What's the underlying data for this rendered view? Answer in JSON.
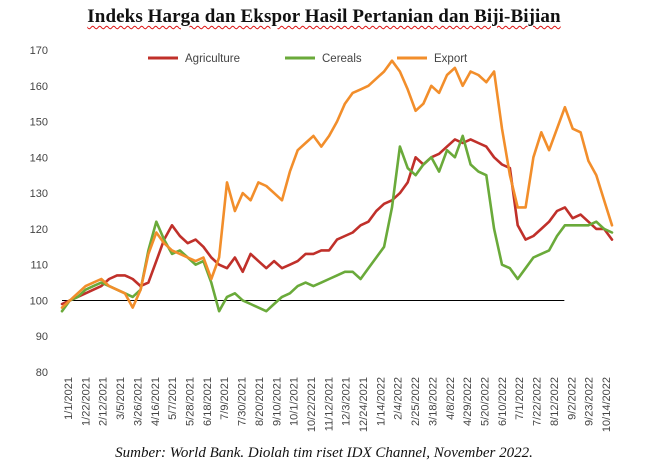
{
  "page": {
    "title": "Indeks Harga dan Ekspor Hasil Pertanian dan Biji-Bijian",
    "source": "Sumber: World Bank. Diolah tim riset IDX Channel, November 2022."
  },
  "chart_data": {
    "type": "line",
    "ylim": [
      80,
      170
    ],
    "yticks": [
      80,
      90,
      100,
      110,
      120,
      130,
      140,
      150,
      160,
      170
    ],
    "x_tick_labels": [
      "1/1/2021",
      "1/22/2021",
      "2/12/2021",
      "3/5/2021",
      "3/26/2021",
      "4/16/2021",
      "5/7/2021",
      "5/28/2021",
      "6/18/2021",
      "7/9/2021",
      "7/30/2021",
      "8/20/2021",
      "9/10/2021",
      "10/1/2021",
      "10/22/2021",
      "11/12/2021",
      "12/3/2021",
      "12/24/2021",
      "1/14/2022",
      "2/4/2022",
      "2/25/2022",
      "3/18/2022",
      "4/8/2022",
      "4/29/2022",
      "5/20/2022",
      "6/10/2022",
      "7/1/2022",
      "7/22/2022",
      "8/12/2022",
      "9/2/2022",
      "9/23/2022",
      "10/14/2022"
    ],
    "grid": false,
    "legend_position": "top-center",
    "reference_line": {
      "value": 100,
      "from_index": 0,
      "to_index": 28.6,
      "color": "#000000"
    },
    "series": [
      {
        "name": "Agriculture",
        "color": "#c0302a",
        "values": [
          99,
          100,
          101,
          102,
          103,
          104,
          106,
          107,
          107,
          106,
          104,
          105,
          111,
          117,
          121,
          118,
          116,
          117,
          115,
          112,
          110,
          109,
          112,
          108,
          113,
          111,
          109,
          111,
          109,
          110,
          111,
          113,
          113,
          114,
          114,
          117,
          118,
          119,
          121,
          122,
          125,
          127,
          128,
          130,
          133,
          140,
          138,
          140,
          141,
          143,
          145,
          144,
          145,
          144,
          143,
          140,
          138,
          137,
          121,
          117,
          118,
          120,
          122,
          125,
          126,
          123,
          124,
          122,
          120,
          120,
          117
        ]
      },
      {
        "name": "Cereals",
        "color": "#6aaa3a",
        "values": [
          97,
          100,
          101,
          103,
          104,
          105,
          104,
          103,
          102,
          101,
          103,
          114,
          122,
          117,
          113,
          114,
          112,
          110,
          111,
          105,
          97,
          101,
          102,
          100,
          99,
          98,
          97,
          99,
          101,
          102,
          104,
          105,
          104,
          105,
          106,
          107,
          108,
          108,
          106,
          109,
          112,
          115,
          126,
          143,
          137,
          135,
          138,
          140,
          136,
          142,
          140,
          146,
          138,
          136,
          135,
          120,
          110,
          109,
          106,
          109,
          112,
          113,
          114,
          118,
          121,
          121,
          121,
          121,
          122,
          120,
          119
        ]
      },
      {
        "name": "Export",
        "color": "#f28e2b",
        "values": [
          98,
          100,
          102,
          104,
          105,
          106,
          104,
          103,
          102,
          98,
          103,
          113,
          119,
          116,
          114,
          113,
          112,
          111,
          112,
          106,
          112,
          133,
          125,
          130,
          128,
          133,
          132,
          130,
          128,
          136,
          142,
          144,
          146,
          143,
          146,
          150,
          155,
          158,
          159,
          160,
          162,
          164,
          167,
          164,
          159,
          153,
          155,
          160,
          158,
          163,
          165,
          160,
          164,
          163,
          161,
          164,
          148,
          135,
          126,
          126,
          140,
          147,
          142,
          148,
          154,
          148,
          147,
          139,
          135,
          128,
          121
        ]
      }
    ]
  }
}
